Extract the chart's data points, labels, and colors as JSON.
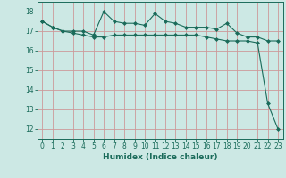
{
  "title": "",
  "xlabel": "Humidex (Indice chaleur)",
  "ylabel": "",
  "bg_color": "#cce8e4",
  "line_color": "#1a6b5a",
  "grid_color": "#cc9999",
  "x": [
    0,
    1,
    2,
    3,
    4,
    5,
    6,
    7,
    8,
    9,
    10,
    11,
    12,
    13,
    14,
    15,
    16,
    17,
    18,
    19,
    20,
    21,
    22,
    23
  ],
  "line1": [
    17.5,
    17.2,
    17.0,
    17.0,
    17.0,
    16.8,
    18.0,
    17.5,
    17.4,
    17.4,
    17.3,
    17.9,
    17.5,
    17.4,
    17.2,
    17.2,
    17.2,
    17.1,
    17.4,
    16.9,
    16.7,
    16.7,
    16.5,
    16.5
  ],
  "line2": [
    17.5,
    17.2,
    17.0,
    16.9,
    16.8,
    16.7,
    16.7,
    16.8,
    16.8,
    16.8,
    16.8,
    16.8,
    16.8,
    16.8,
    16.8,
    16.8,
    16.7,
    16.6,
    16.5,
    16.5,
    16.5,
    16.4,
    13.3,
    12.0
  ],
  "ylim": [
    11.5,
    18.5
  ],
  "xlim": [
    -0.5,
    23.5
  ],
  "yticks": [
    12,
    13,
    14,
    15,
    16,
    17,
    18
  ],
  "xticks": [
    0,
    1,
    2,
    3,
    4,
    5,
    6,
    7,
    8,
    9,
    10,
    11,
    12,
    13,
    14,
    15,
    16,
    17,
    18,
    19,
    20,
    21,
    22,
    23
  ],
  "xlabel_fontsize": 6.5,
  "tick_fontsize": 5.5
}
